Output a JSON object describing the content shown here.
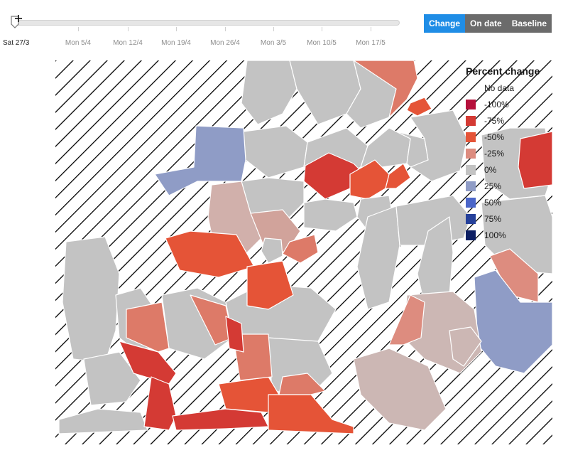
{
  "timeline": {
    "start_label": "Sat 27/3",
    "ticks": [
      "Mon 5/4",
      "Mon 12/4",
      "Mon 19/4",
      "Mon 26/4",
      "Mon 3/5",
      "Mon 10/5",
      "Mon 17/5"
    ]
  },
  "mode_toggle": {
    "options": [
      {
        "label": "Change",
        "active": true
      },
      {
        "label": "On date",
        "active": false
      },
      {
        "label": "Baseline",
        "active": false
      }
    ]
  },
  "legend": {
    "title": "Percent change",
    "items": [
      {
        "label": "No data",
        "color": "hatched"
      },
      {
        "label": "-100%",
        "color": "#b5103b"
      },
      {
        "label": "-75%",
        "color": "#d43a34"
      },
      {
        "label": "-50%",
        "color": "#e55437"
      },
      {
        "label": "-25%",
        "color": "#dd8c7f"
      },
      {
        "label": "0%",
        "color": "#c3c3c3"
      },
      {
        "label": "25%",
        "color": "#8f9cc6"
      },
      {
        "label": "50%",
        "color": "#4b66c9"
      },
      {
        "label": "75%",
        "color": "#25409a"
      },
      {
        "label": "100%",
        "color": "#0d1f63"
      }
    ]
  },
  "colors": {
    "accent": "#1f8de6",
    "toggle_inactive": "#6b6b6b",
    "neutral_region": "#c3c3c3",
    "border": "#ffffff"
  }
}
